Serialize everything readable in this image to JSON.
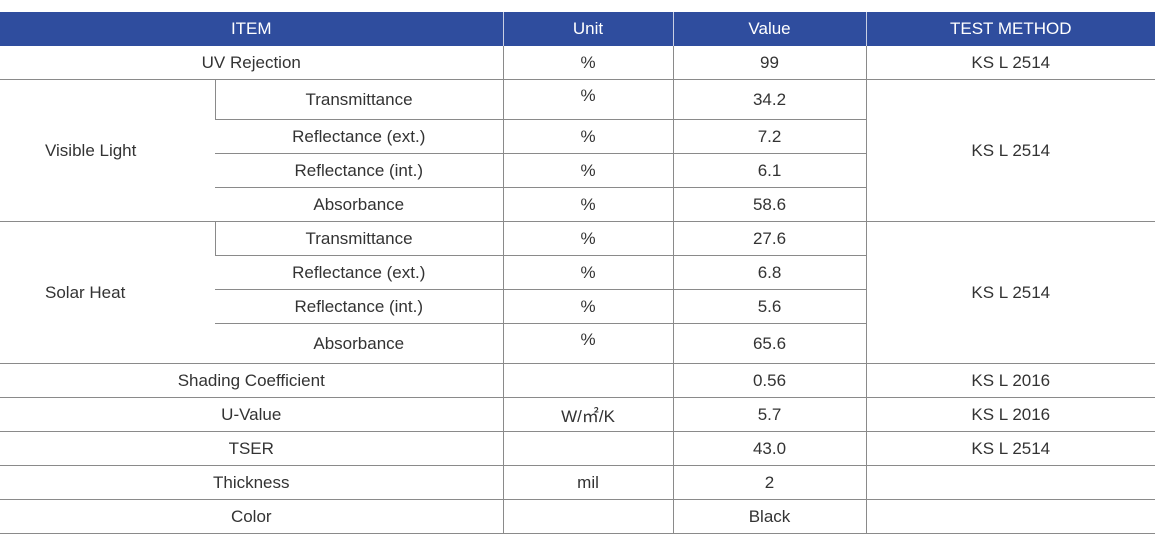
{
  "header": {
    "item": "ITEM",
    "unit": "Unit",
    "value": "Value",
    "method": "TEST METHOD"
  },
  "uv": {
    "label": "UV Rejection",
    "unit": "%",
    "value": "99",
    "method": "KS L 2514"
  },
  "visible": {
    "group": "Visible Light",
    "method": "KS L 2514",
    "rows": [
      {
        "label": "Transmittance",
        "unit": "%",
        "value": "34.2"
      },
      {
        "label": "Reflectance (ext.)",
        "unit": "%",
        "value": "7.2"
      },
      {
        "label": "Reflectance (int.)",
        "unit": "%",
        "value": "6.1"
      },
      {
        "label": "Absorbance",
        "unit": "%",
        "value": "58.6"
      }
    ]
  },
  "solar": {
    "group": "Solar Heat",
    "method": "KS L 2514",
    "rows": [
      {
        "label": "Transmittance",
        "unit": "%",
        "value": "27.6"
      },
      {
        "label": "Reflectance (ext.)",
        "unit": "%",
        "value": "6.8"
      },
      {
        "label": "Reflectance (int.)",
        "unit": "%",
        "value": "5.6"
      },
      {
        "label": "Absorbance",
        "unit": "%",
        "value": "65.6"
      }
    ]
  },
  "shading": {
    "label": "Shading Coefficient",
    "unit": "",
    "value": "0.56",
    "method": "KS L 2016"
  },
  "uvalue": {
    "label": "U-Value",
    "unit": "W/㎡/K",
    "value": "5.7",
    "method": "KS L 2016"
  },
  "tser": {
    "label": "TSER",
    "unit": "",
    "value": "43.0",
    "method": "KS L 2514"
  },
  "thickness": {
    "label": "Thickness",
    "unit": "mil",
    "value": "2",
    "method": ""
  },
  "color": {
    "label": "Color",
    "unit": "",
    "value": "Black",
    "method": ""
  }
}
